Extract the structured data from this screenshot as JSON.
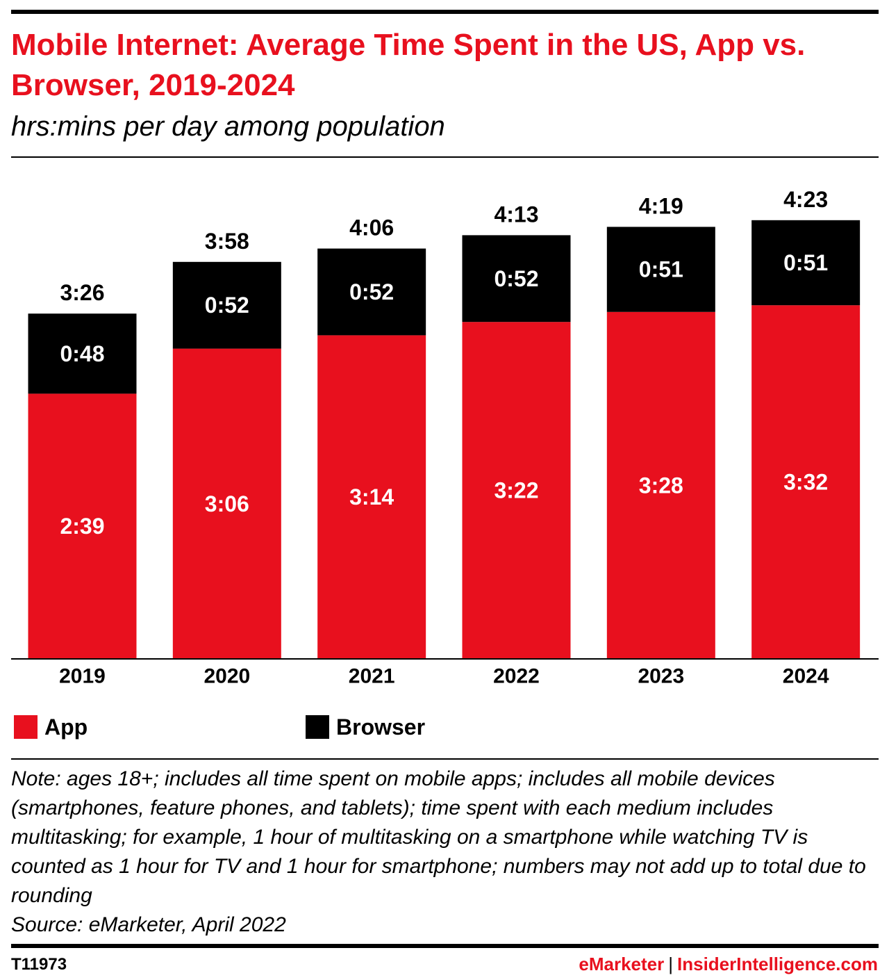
{
  "header": {
    "title": "Mobile Internet: Average Time Spent in the US, App vs. Browser, 2019-2024",
    "subtitle": "hrs:mins per day among population"
  },
  "chart_data": {
    "type": "bar",
    "stacked": true,
    "categories": [
      "2019",
      "2020",
      "2021",
      "2022",
      "2023",
      "2024"
    ],
    "series": [
      {
        "name": "App",
        "color": "#e8101e",
        "values": [
          159,
          186,
          194,
          202,
          208,
          212
        ],
        "labels": [
          "2:39",
          "3:06",
          "3:14",
          "3:22",
          "3:28",
          "3:32"
        ]
      },
      {
        "name": "Browser",
        "color": "#000000",
        "values": [
          48,
          52,
          52,
          52,
          51,
          51
        ],
        "labels": [
          "0:48",
          "0:52",
          "0:52",
          "0:52",
          "0:51",
          "0:51"
        ]
      }
    ],
    "totals": [
      206,
      238,
      246,
      253,
      259,
      263
    ],
    "total_labels": [
      "3:26",
      "3:58",
      "4:06",
      "4:13",
      "4:19",
      "4:23"
    ],
    "ylim": [
      0,
      280
    ],
    "grid": false,
    "legend_position": "bottom-left"
  },
  "legend": {
    "app": {
      "label": "App",
      "color": "#e8101e"
    },
    "browser": {
      "label": "Browser",
      "color": "#000000"
    }
  },
  "footer": {
    "note": "Note: ages 18+; includes all time spent on mobile apps; includes all mobile devices (smartphones, feature phones, and tablets); time spent with each medium includes multitasking; for example, 1 hour of multitasking on a smartphone while watching TV is counted as 1 hour for TV and 1 hour for smartphone; numbers may not add up to total due to rounding",
    "source": "Source: eMarketer, April 2022",
    "chart_id": "T11973",
    "brand_primary": "eMarketer",
    "brand_separator": "|",
    "brand_secondary": "InsiderIntelligence.com"
  }
}
